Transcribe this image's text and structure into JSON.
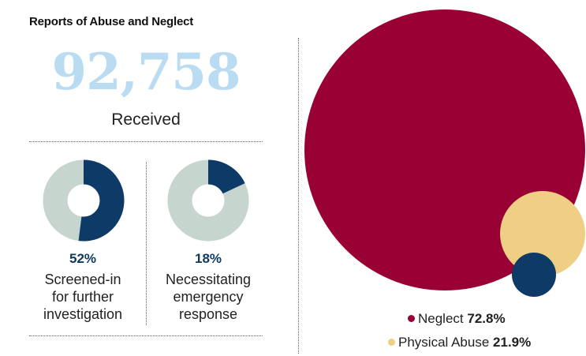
{
  "title": "Reports of Abuse and Neglect",
  "received": {
    "value": "92,758",
    "label": "Received"
  },
  "colors": {
    "navy": "#0d3a66",
    "donut_track": "#c6d5cd",
    "neglect": "#990033",
    "physical": "#eecf84",
    "third": "#0d3a66",
    "big_number": "#b9dcf2"
  },
  "chart_data": [
    {
      "type": "pie",
      "variant": "donut",
      "value_percent": 52,
      "label_text": "52%",
      "caption": [
        "Screened-in",
        "for further",
        "investigation"
      ]
    },
    {
      "type": "pie",
      "variant": "donut",
      "value_percent": 18,
      "label_text": "18%",
      "caption": [
        "Necessitating",
        "emergency",
        "response"
      ]
    },
    {
      "type": "scatter",
      "variant": "proportional-area circles",
      "items": [
        {
          "name": "Neglect",
          "value": 72.8,
          "label_text": "72.8%",
          "color": "#990033"
        },
        {
          "name": "Physical Abuse",
          "value": 21.9,
          "label_text": "21.9%",
          "color": "#eecf84"
        },
        {
          "name": "",
          "value": 5.3,
          "color": "#0d3a66"
        }
      ],
      "legend": [
        {
          "name": "Neglect",
          "value_text": "72.8%"
        },
        {
          "name": "Physical Abuse",
          "value_text": "21.9%"
        }
      ]
    }
  ]
}
